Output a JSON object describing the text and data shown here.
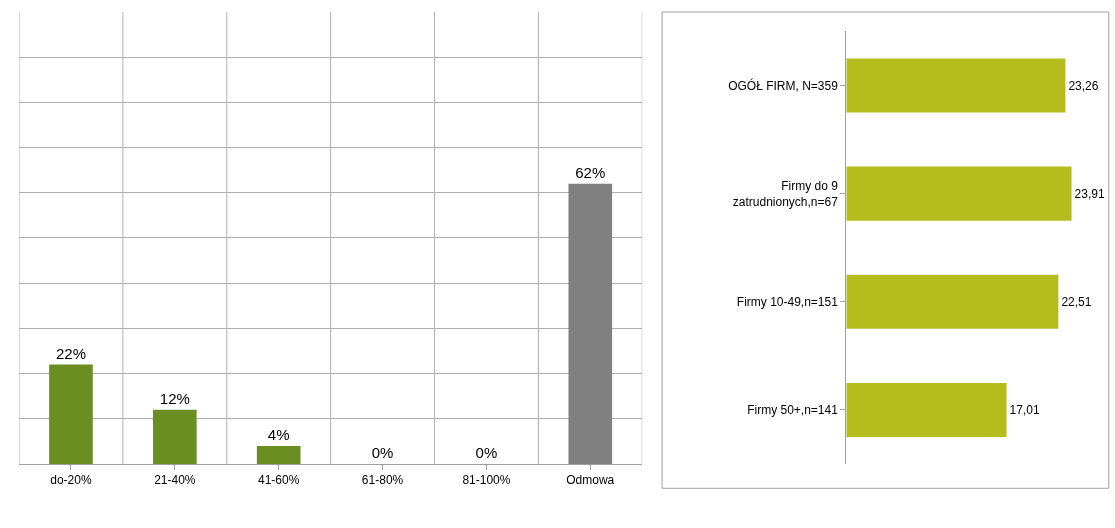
{
  "chart_data": [
    {
      "type": "bar",
      "categories": [
        "do-20%",
        "21-40%",
        "41-60%",
        "61-80%",
        "81-100%",
        "Odmowa"
      ],
      "values": [
        22,
        12,
        4,
        0,
        0,
        62
      ],
      "colors": [
        "#6b8e23",
        "#6b8e23",
        "#6b8e23",
        "#6b8e23",
        "#6b8e23",
        "#808080"
      ],
      "value_labels": [
        "22%",
        "12%",
        "4%",
        "0%",
        "0%",
        "62%"
      ],
      "ylim": [
        0,
        100
      ],
      "yticks": [
        {
          "value": 0,
          "label": null
        },
        {
          "value": 10,
          "label": null
        },
        {
          "value": 20,
          "label": null
        },
        {
          "value": 30,
          "label": null
        },
        {
          "value": 40,
          "label": null
        },
        {
          "value": 50,
          "label": null
        },
        {
          "value": 60,
          "label": null
        },
        {
          "value": 70,
          "label": null
        },
        {
          "value": 80,
          "label": null
        },
        {
          "value": 90,
          "label": null
        }
      ],
      "grid": true,
      "tick_labels": "x"
    },
    {
      "type": "bar",
      "orientation": "horizontal",
      "categories": [
        "OGÓŁ FIRM, N=359",
        "Firmy do 9\nzatrudnionych,n=67",
        "Firmy 10-49,n=151",
        "Firmy 50+,n=141"
      ],
      "values": [
        23.26,
        23.91,
        22.51,
        17.01
      ],
      "color": "#b5bd1e",
      "value_labels": [
        "23,26",
        "23,91",
        "22,51",
        "17,01"
      ],
      "grid": false,
      "tick_labels": "y"
    }
  ]
}
